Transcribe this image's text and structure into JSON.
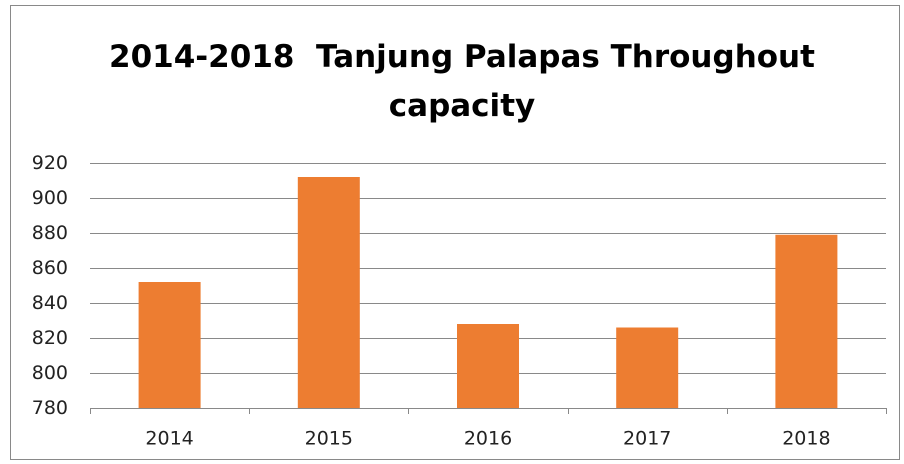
{
  "chart_data": {
    "type": "bar",
    "title": "2014-2018  Tanjung Palapas Throughout capacity",
    "categories": [
      "2014",
      "2015",
      "2016",
      "2017",
      "2018"
    ],
    "values": [
      852,
      912,
      828,
      826,
      879
    ],
    "color": "#ed7d31",
    "ylim": [
      780,
      920
    ],
    "yticks": [
      780,
      800,
      820,
      840,
      860,
      880,
      900,
      920
    ],
    "grid": true
  }
}
